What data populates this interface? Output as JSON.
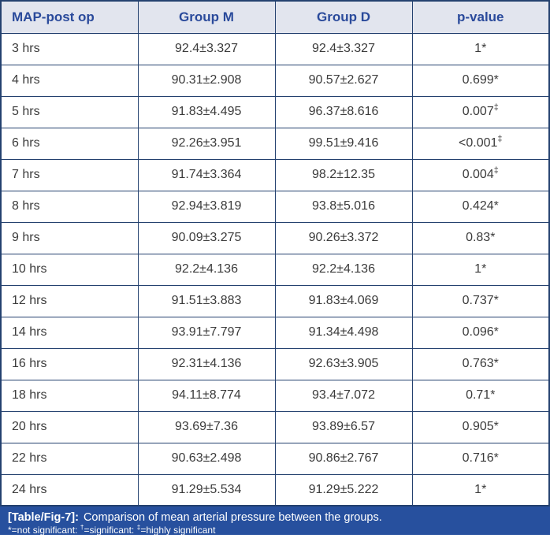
{
  "table": {
    "columns": [
      {
        "label": "MAP-post op"
      },
      {
        "label": "Group M"
      },
      {
        "label": "Group D"
      },
      {
        "label": "p-value"
      }
    ],
    "rows": [
      {
        "time": "3 hrs",
        "group_m": "92.4±3.327",
        "group_d": "92.4±3.327",
        "p_value": "1",
        "sig_mark": "*"
      },
      {
        "time": "4 hrs",
        "group_m": "90.31±2.908",
        "group_d": "90.57±2.627",
        "p_value": "0.699",
        "sig_mark": "*"
      },
      {
        "time": "5 hrs",
        "group_m": "91.83±4.495",
        "group_d": "96.37±8.616",
        "p_value": "0.007",
        "sig_mark": "‡"
      },
      {
        "time": "6 hrs",
        "group_m": "92.26±3.951",
        "group_d": "99.51±9.416",
        "p_value": "<0.001",
        "sig_mark": "‡"
      },
      {
        "time": "7 hrs",
        "group_m": "91.74±3.364",
        "group_d": "98.2±12.35",
        "p_value": "0.004",
        "sig_mark": "‡"
      },
      {
        "time": "8 hrs",
        "group_m": "92.94±3.819",
        "group_d": "93.8±5.016",
        "p_value": "0.424",
        "sig_mark": "*"
      },
      {
        "time": "9 hrs",
        "group_m": "90.09±3.275",
        "group_d": "90.26±3.372",
        "p_value": "0.83",
        "sig_mark": "*"
      },
      {
        "time": "10 hrs",
        "group_m": "92.2±4.136",
        "group_d": "92.2±4.136",
        "p_value": "1",
        "sig_mark": "*"
      },
      {
        "time": "12 hrs",
        "group_m": "91.51±3.883",
        "group_d": "91.83±4.069",
        "p_value": "0.737",
        "sig_mark": "*"
      },
      {
        "time": "14 hrs",
        "group_m": "93.91±7.797",
        "group_d": "91.34±4.498",
        "p_value": "0.096",
        "sig_mark": "*"
      },
      {
        "time": "16 hrs",
        "group_m": "92.31±4.136",
        "group_d": "92.63±3.905",
        "p_value": "0.763",
        "sig_mark": "*"
      },
      {
        "time": "18 hrs",
        "group_m": "94.11±8.774",
        "group_d": "93.4±7.072",
        "p_value": "0.71",
        "sig_mark": "*"
      },
      {
        "time": "20 hrs",
        "group_m": "93.69±7.36",
        "group_d": "93.89±6.57",
        "p_value": "0.905",
        "sig_mark": "*"
      },
      {
        "time": "22 hrs",
        "group_m": "90.63±2.498",
        "group_d": "90.86±2.767",
        "p_value": "0.716",
        "sig_mark": "*"
      },
      {
        "time": "24 hrs",
        "group_m": "91.29±5.534",
        "group_d": "91.29±5.222",
        "p_value": "1",
        "sig_mark": "*"
      }
    ]
  },
  "caption": {
    "label": "[Table/Fig-7]:",
    "text": "Comparison of mean arterial pressure between the groups."
  },
  "footnote": {
    "part1_mark": "*",
    "part1_text": "=not significant: ",
    "part2_mark": "†",
    "part2_text": "=significant: ",
    "part3_mark": "‡",
    "part3_text": "=highly significant"
  },
  "colors": {
    "border": "#24416f",
    "header_bg": "#e2e5ee",
    "header_text": "#2a4a9b",
    "body_text": "#3b3b3b",
    "caption_bg": "#27509e",
    "caption_text": "#ffffff"
  }
}
